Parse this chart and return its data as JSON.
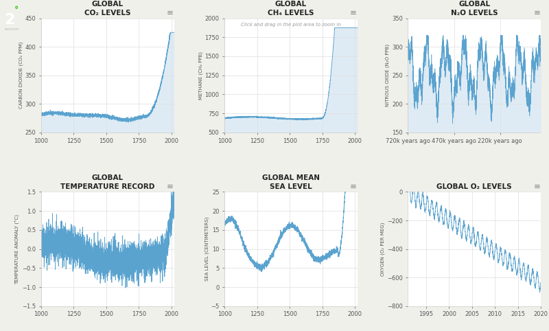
{
  "bg_color": "#f0f0eb",
  "plot_bg_color": "#ffffff",
  "line_color": "#5ba3cf",
  "fill_color": "#b8d4e8",
  "grid_color": "#dddddd",
  "text_color": "#222222",
  "title_fontsize": 7.5,
  "label_fontsize": 5.0,
  "tick_fontsize": 6.0,
  "subtitle_ch4": "Click and drag in the plot area to zoom in",
  "co2_xlim": [
    1000,
    2020
  ],
  "co2_ylim": [
    250,
    450
  ],
  "co2_yticks": [
    250,
    300,
    350,
    400,
    450
  ],
  "co2_xticks": [
    1000,
    1250,
    1500,
    1750,
    2000
  ],
  "ch4_xlim": [
    1000,
    2020
  ],
  "ch4_ylim": [
    500,
    2000
  ],
  "ch4_yticks": [
    500,
    750,
    1000,
    1250,
    1500,
    1750,
    2000
  ],
  "ch4_xticks": [
    1000,
    1250,
    1500,
    1750,
    2000
  ],
  "n2o_ylim": [
    150,
    350
  ],
  "n2o_yticks": [
    150,
    200,
    250,
    300,
    350
  ],
  "n2o_xticks_labels": [
    "720k years ago",
    "470k years ago",
    "220k years ago"
  ],
  "n2o_xticks_vals": [
    720000,
    470000,
    220000
  ],
  "temp_xlim": [
    1000,
    2020
  ],
  "temp_ylim": [
    -1.5,
    1.5
  ],
  "temp_yticks": [
    -1.5,
    -1.0,
    -0.5,
    0,
    0.5,
    1.0,
    1.5
  ],
  "temp_xticks": [
    1000,
    1250,
    1500,
    1750,
    2000
  ],
  "sl_xlim": [
    1000,
    2020
  ],
  "sl_ylim": [
    -5,
    25
  ],
  "sl_yticks": [
    -5,
    0,
    5,
    10,
    15,
    20,
    25
  ],
  "sl_xticks": [
    1000,
    1250,
    1500,
    1750,
    2000
  ],
  "o2_xlim": [
    1991,
    2020
  ],
  "o2_ylim": [
    -800,
    0
  ],
  "o2_yticks": [
    -800,
    -600,
    -400,
    -200,
    0
  ],
  "o2_xticks": [
    1995,
    2000,
    2005,
    2010,
    2015,
    2020
  ],
  "ylabels": [
    "CARBON DIOXIDE (CO₂ PPM)",
    "METHANE (CH₄ PPB)",
    "NITROUS OXIDE (N₂O PPB)",
    "TEMPERATURE ANOMALY (°C)",
    "SEA LEVEL (CENTIMETERS)",
    "OXYGEN (O₂ PER MEG)"
  ],
  "titles": [
    "GLOBAL\nCO₂ LEVELS",
    "GLOBAL\nCH₄ LEVELS",
    "GLOBAL\nN₂O LEVELS",
    "GLOBAL\nTEMPERATURE RECORD",
    "GLOBAL MEAN\nSEA LEVEL",
    "GLOBAL O₂ LEVELS"
  ]
}
